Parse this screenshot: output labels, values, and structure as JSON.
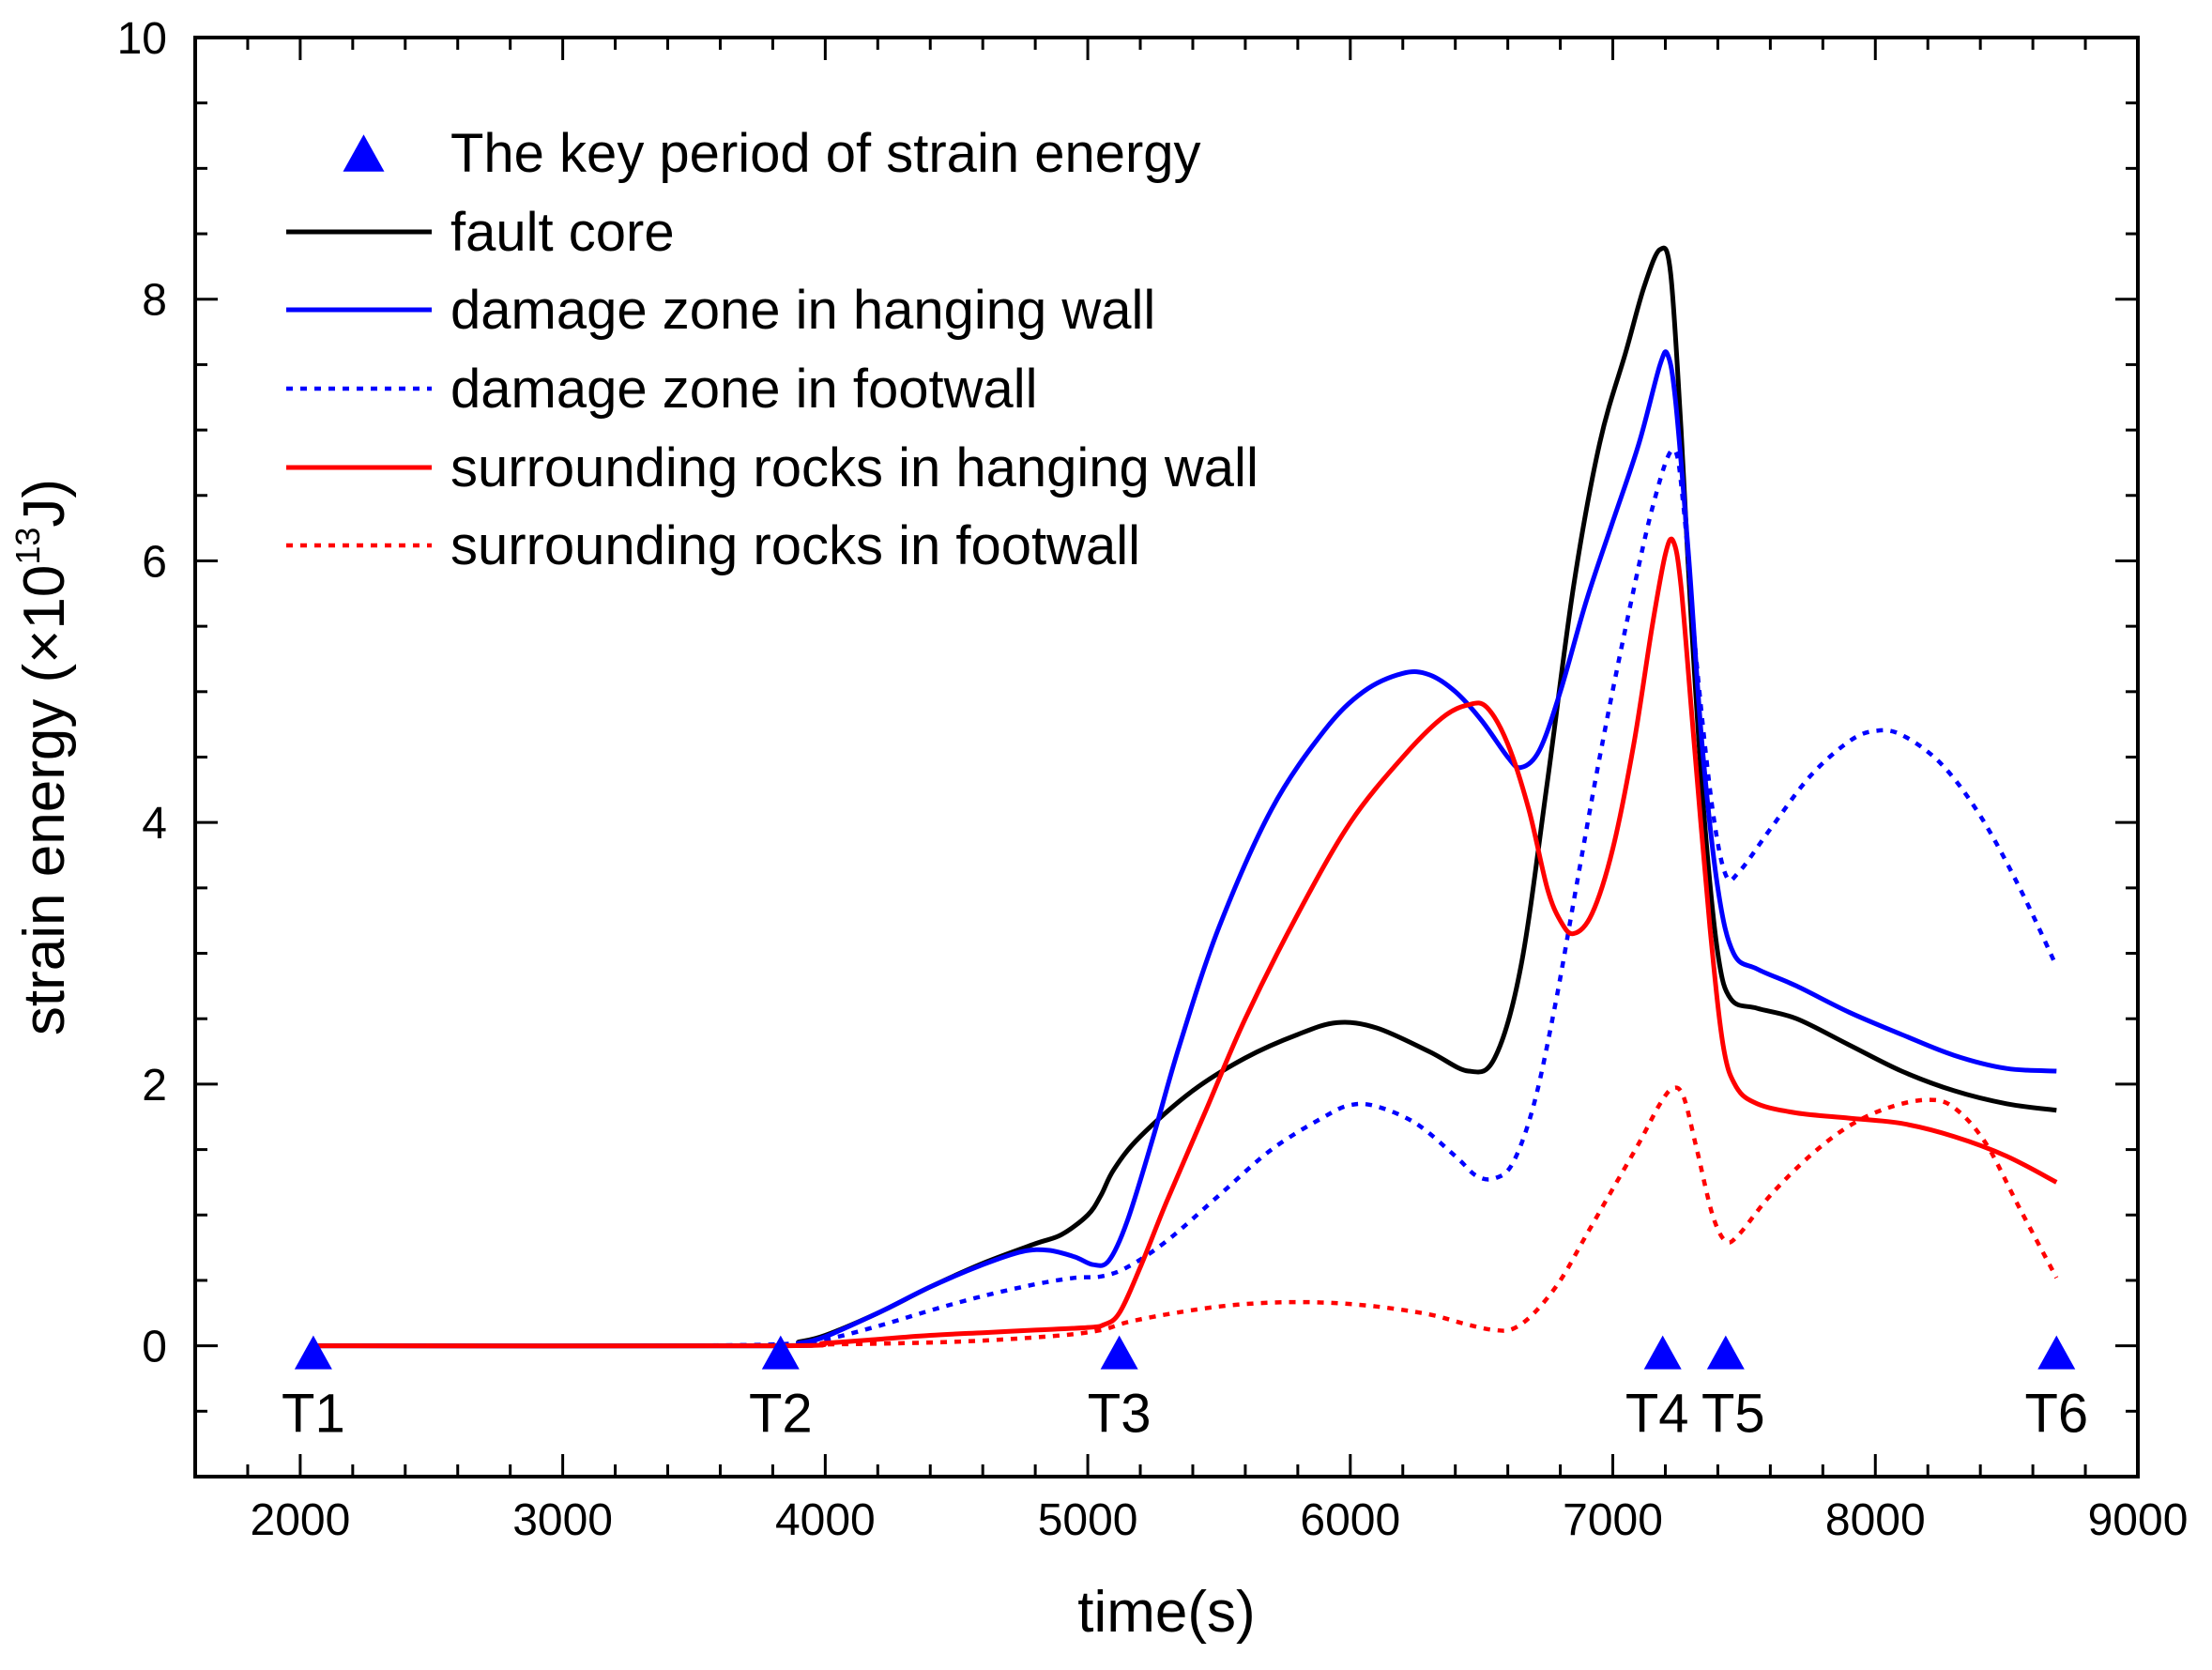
{
  "chart_data": {
    "type": "line",
    "xlabel": "time(s)",
    "ylabel": {
      "main": "strain energy (",
      "times": "×",
      "base": "10",
      "exponent": "13",
      "unit": "J)"
    },
    "xlim": [
      1600,
      9000
    ],
    "ylim": [
      -1,
      10
    ],
    "xticks": [
      2000,
      3000,
      4000,
      5000,
      6000,
      7000,
      8000,
      9000
    ],
    "yticks": [
      0,
      2,
      4,
      6,
      8,
      10
    ],
    "x_minor_step": 200,
    "y_minor_step": 0.5,
    "legend_position": "top-left",
    "colors": {
      "black": "#000000",
      "blue": "#0000ff",
      "red": "#ff0000",
      "marker": "#0000ff"
    },
    "key_periods": {
      "name": "The key period of strain energy",
      "marker": "triangle-up",
      "points": [
        {
          "label": "T1",
          "x": 2050,
          "y": -0.05
        },
        {
          "label": "T2",
          "x": 3830,
          "y": -0.05
        },
        {
          "label": "T3",
          "x": 5120,
          "y": -0.05
        },
        {
          "label": "T4",
          "x": 7190,
          "y": -0.05
        },
        {
          "label": "T5",
          "x": 7430,
          "y": -0.05
        },
        {
          "label": "T6",
          "x": 8690,
          "y": -0.05
        }
      ]
    },
    "series": [
      {
        "name": "fault core",
        "color": "#000000",
        "dash": "solid",
        "points": [
          [
            2050,
            0
          ],
          [
            3800,
            0
          ],
          [
            3900,
            0.03
          ],
          [
            4000,
            0.08
          ],
          [
            4200,
            0.25
          ],
          [
            4400,
            0.45
          ],
          [
            4600,
            0.63
          ],
          [
            4800,
            0.78
          ],
          [
            4900,
            0.85
          ],
          [
            5000,
            1.0
          ],
          [
            5050,
            1.15
          ],
          [
            5100,
            1.35
          ],
          [
            5200,
            1.6
          ],
          [
            5400,
            1.95
          ],
          [
            5600,
            2.2
          ],
          [
            5800,
            2.38
          ],
          [
            5950,
            2.47
          ],
          [
            6100,
            2.43
          ],
          [
            6300,
            2.25
          ],
          [
            6450,
            2.1
          ],
          [
            6550,
            2.2
          ],
          [
            6650,
            2.9
          ],
          [
            6750,
            4.3
          ],
          [
            6850,
            5.8
          ],
          [
            6950,
            6.9
          ],
          [
            7050,
            7.6
          ],
          [
            7120,
            8.1
          ],
          [
            7180,
            8.38
          ],
          [
            7220,
            8.2
          ],
          [
            7260,
            7.0
          ],
          [
            7300,
            5.5
          ],
          [
            7350,
            4.0
          ],
          [
            7400,
            3.0
          ],
          [
            7450,
            2.65
          ],
          [
            7550,
            2.58
          ],
          [
            7700,
            2.5
          ],
          [
            7900,
            2.3
          ],
          [
            8100,
            2.1
          ],
          [
            8300,
            1.95
          ],
          [
            8500,
            1.85
          ],
          [
            8690,
            1.8
          ]
        ]
      },
      {
        "name": "damage zone in hanging wall",
        "color": "#0000ff",
        "dash": "solid",
        "points": [
          [
            2050,
            0
          ],
          [
            3800,
            0
          ],
          [
            3900,
            0.02
          ],
          [
            4000,
            0.07
          ],
          [
            4200,
            0.25
          ],
          [
            4400,
            0.45
          ],
          [
            4600,
            0.62
          ],
          [
            4750,
            0.72
          ],
          [
            4850,
            0.73
          ],
          [
            4950,
            0.68
          ],
          [
            5020,
            0.62
          ],
          [
            5080,
            0.65
          ],
          [
            5150,
            0.95
          ],
          [
            5250,
            1.6
          ],
          [
            5350,
            2.3
          ],
          [
            5500,
            3.2
          ],
          [
            5700,
            4.1
          ],
          [
            5900,
            4.7
          ],
          [
            6050,
            5.0
          ],
          [
            6200,
            5.14
          ],
          [
            6300,
            5.13
          ],
          [
            6400,
            5.0
          ],
          [
            6500,
            4.78
          ],
          [
            6600,
            4.5
          ],
          [
            6650,
            4.42
          ],
          [
            6720,
            4.55
          ],
          [
            6800,
            5.0
          ],
          [
            6900,
            5.7
          ],
          [
            7000,
            6.3
          ],
          [
            7100,
            6.9
          ],
          [
            7180,
            7.5
          ],
          [
            7210,
            7.57
          ],
          [
            7240,
            7.2
          ],
          [
            7290,
            6.0
          ],
          [
            7340,
            4.6
          ],
          [
            7400,
            3.5
          ],
          [
            7460,
            3.0
          ],
          [
            7550,
            2.88
          ],
          [
            7700,
            2.75
          ],
          [
            7900,
            2.55
          ],
          [
            8100,
            2.38
          ],
          [
            8300,
            2.22
          ],
          [
            8500,
            2.12
          ],
          [
            8690,
            2.1
          ]
        ]
      },
      {
        "name": "damage zone in footwall",
        "color": "#0000ff",
        "dash": "dotted",
        "points": [
          [
            3300,
            0
          ],
          [
            3800,
            0.01
          ],
          [
            4000,
            0.05
          ],
          [
            4200,
            0.15
          ],
          [
            4400,
            0.27
          ],
          [
            4600,
            0.38
          ],
          [
            4800,
            0.47
          ],
          [
            4950,
            0.52
          ],
          [
            5050,
            0.53
          ],
          [
            5150,
            0.6
          ],
          [
            5300,
            0.8
          ],
          [
            5500,
            1.15
          ],
          [
            5700,
            1.5
          ],
          [
            5900,
            1.75
          ],
          [
            6000,
            1.84
          ],
          [
            6100,
            1.83
          ],
          [
            6250,
            1.7
          ],
          [
            6400,
            1.45
          ],
          [
            6480,
            1.3
          ],
          [
            6550,
            1.28
          ],
          [
            6620,
            1.4
          ],
          [
            6700,
            1.85
          ],
          [
            6780,
            2.6
          ],
          [
            6860,
            3.5
          ],
          [
            6950,
            4.5
          ],
          [
            7050,
            5.5
          ],
          [
            7150,
            6.4
          ],
          [
            7230,
            6.85
          ],
          [
            7270,
            6.4
          ],
          [
            7320,
            5.2
          ],
          [
            7380,
            4.1
          ],
          [
            7430,
            3.6
          ],
          [
            7480,
            3.62
          ],
          [
            7600,
            3.95
          ],
          [
            7750,
            4.35
          ],
          [
            7900,
            4.62
          ],
          [
            8000,
            4.7
          ],
          [
            8100,
            4.67
          ],
          [
            8250,
            4.45
          ],
          [
            8400,
            4.05
          ],
          [
            8550,
            3.5
          ],
          [
            8690,
            2.9
          ]
        ]
      },
      {
        "name": "surrounding rocks in hanging wall",
        "color": "#ff0000",
        "dash": "solid",
        "points": [
          [
            2050,
            0
          ],
          [
            3800,
            0
          ],
          [
            4000,
            0.02
          ],
          [
            4200,
            0.05
          ],
          [
            4400,
            0.08
          ],
          [
            4600,
            0.1
          ],
          [
            4800,
            0.12
          ],
          [
            5000,
            0.14
          ],
          [
            5060,
            0.16
          ],
          [
            5120,
            0.25
          ],
          [
            5200,
            0.6
          ],
          [
            5300,
            1.1
          ],
          [
            5450,
            1.8
          ],
          [
            5600,
            2.5
          ],
          [
            5800,
            3.3
          ],
          [
            6000,
            4.0
          ],
          [
            6200,
            4.5
          ],
          [
            6350,
            4.8
          ],
          [
            6450,
            4.9
          ],
          [
            6520,
            4.88
          ],
          [
            6600,
            4.6
          ],
          [
            6680,
            4.1
          ],
          [
            6750,
            3.5
          ],
          [
            6800,
            3.25
          ],
          [
            6850,
            3.15
          ],
          [
            6920,
            3.3
          ],
          [
            7000,
            3.8
          ],
          [
            7080,
            4.6
          ],
          [
            7150,
            5.5
          ],
          [
            7200,
            6.05
          ],
          [
            7230,
            6.15
          ],
          [
            7260,
            5.8
          ],
          [
            7310,
            4.6
          ],
          [
            7370,
            3.2
          ],
          [
            7420,
            2.3
          ],
          [
            7470,
            1.98
          ],
          [
            7550,
            1.85
          ],
          [
            7700,
            1.78
          ],
          [
            7900,
            1.74
          ],
          [
            8100,
            1.7
          ],
          [
            8300,
            1.6
          ],
          [
            8500,
            1.45
          ],
          [
            8690,
            1.25
          ]
        ]
      },
      {
        "name": "surrounding rocks in footwall",
        "color": "#ff0000",
        "dash": "dotted",
        "points": [
          [
            2050,
            0
          ],
          [
            3800,
            0
          ],
          [
            4000,
            0.01
          ],
          [
            4300,
            0.02
          ],
          [
            4600,
            0.04
          ],
          [
            4900,
            0.08
          ],
          [
            5050,
            0.12
          ],
          [
            5150,
            0.18
          ],
          [
            5300,
            0.24
          ],
          [
            5500,
            0.3
          ],
          [
            5700,
            0.33
          ],
          [
            5900,
            0.33
          ],
          [
            6100,
            0.3
          ],
          [
            6300,
            0.24
          ],
          [
            6450,
            0.16
          ],
          [
            6550,
            0.12
          ],
          [
            6620,
            0.13
          ],
          [
            6700,
            0.25
          ],
          [
            6800,
            0.5
          ],
          [
            6900,
            0.85
          ],
          [
            7000,
            1.2
          ],
          [
            7100,
            1.55
          ],
          [
            7180,
            1.85
          ],
          [
            7230,
            1.97
          ],
          [
            7270,
            1.9
          ],
          [
            7320,
            1.5
          ],
          [
            7380,
            1.0
          ],
          [
            7430,
            0.8
          ],
          [
            7480,
            0.85
          ],
          [
            7600,
            1.15
          ],
          [
            7750,
            1.45
          ],
          [
            7900,
            1.68
          ],
          [
            8050,
            1.82
          ],
          [
            8200,
            1.88
          ],
          [
            8300,
            1.82
          ],
          [
            8420,
            1.55
          ],
          [
            8550,
            1.05
          ],
          [
            8690,
            0.52
          ]
        ]
      }
    ]
  }
}
